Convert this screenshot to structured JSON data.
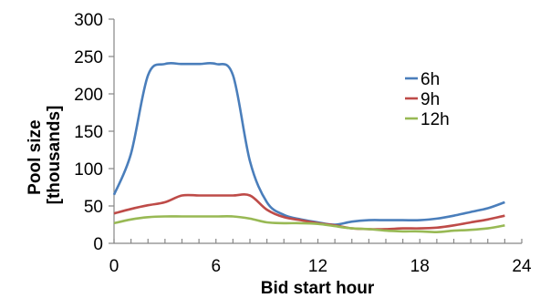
{
  "chart_data": {
    "type": "line",
    "xlabel": "Bid start hour",
    "ylabel_lines": [
      "Pool size",
      "[thousands]"
    ],
    "xlim": [
      0,
      24
    ],
    "ylim": [
      0,
      300
    ],
    "x_ticks": [
      0,
      6,
      12,
      18,
      24
    ],
    "y_ticks": [
      0,
      50,
      100,
      150,
      200,
      250,
      300
    ],
    "grid": false,
    "legend_position": "right",
    "series": [
      {
        "name": "6h",
        "color": "#4a7ebb",
        "x": [
          0,
          1,
          2,
          3,
          4,
          5,
          6,
          7,
          8,
          9,
          10,
          11,
          12,
          13,
          14,
          15,
          16,
          17,
          18,
          19,
          20,
          21,
          22,
          23
        ],
        "y": [
          65,
          120,
          225,
          240,
          240,
          240,
          240,
          225,
          110,
          55,
          38,
          32,
          28,
          25,
          29,
          31,
          31,
          31,
          31,
          33,
          37,
          42,
          47,
          55
        ]
      },
      {
        "name": "9h",
        "color": "#be4b48",
        "x": [
          0,
          1,
          2,
          3,
          4,
          5,
          6,
          7,
          8,
          9,
          10,
          11,
          12,
          13,
          14,
          15,
          16,
          17,
          18,
          19,
          20,
          21,
          22,
          23
        ],
        "y": [
          40,
          46,
          51,
          55,
          64,
          64,
          64,
          64,
          64,
          45,
          35,
          31,
          27,
          24,
          20,
          19,
          19,
          20,
          20,
          21,
          24,
          28,
          32,
          37
        ]
      },
      {
        "name": "12h",
        "color": "#98b954",
        "x": [
          0,
          1,
          2,
          3,
          4,
          5,
          6,
          7,
          8,
          9,
          10,
          11,
          12,
          13,
          14,
          15,
          16,
          17,
          18,
          19,
          20,
          21,
          22,
          23
        ],
        "y": [
          27,
          32,
          35,
          36,
          36,
          36,
          36,
          36,
          33,
          28,
          27,
          27,
          26,
          23,
          20,
          19,
          17,
          16,
          16,
          15,
          17,
          18,
          20,
          24
        ]
      }
    ]
  }
}
